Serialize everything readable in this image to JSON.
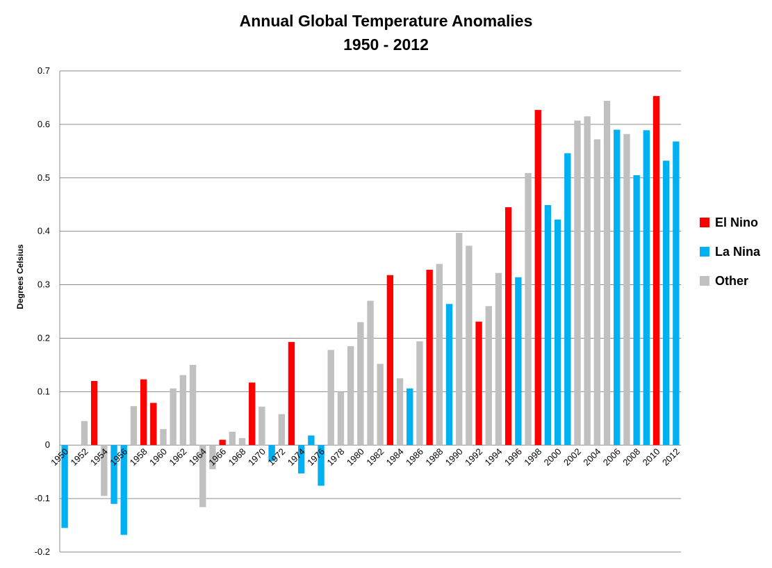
{
  "chart_data": {
    "type": "bar",
    "title_line1": "Annual Global Temperature Anomalies",
    "title_line2": "1950 - 2012",
    "xlabel": "",
    "ylabel": "Degrees Celsius",
    "ylim": [
      -0.2,
      0.7
    ],
    "yticks": [
      "-0.2",
      "-0.1",
      "0",
      "0.1",
      "0.2",
      "0.3",
      "0.4",
      "0.5",
      "0.6",
      "0.7"
    ],
    "grid": "horizontal",
    "legend_position": "right",
    "categories": [
      "1950",
      "1951",
      "1952",
      "1953",
      "1954",
      "1955",
      "1956",
      "1957",
      "1958",
      "1959",
      "1960",
      "1961",
      "1962",
      "1963",
      "1964",
      "1965",
      "1966",
      "1967",
      "1968",
      "1969",
      "1970",
      "1971",
      "1972",
      "1973",
      "1974",
      "1975",
      "1976",
      "1977",
      "1978",
      "1979",
      "1980",
      "1981",
      "1982",
      "1983",
      "1984",
      "1985",
      "1986",
      "1987",
      "1988",
      "1989",
      "1990",
      "1991",
      "1992",
      "1993",
      "1994",
      "1995",
      "1996",
      "1997",
      "1998",
      "1999",
      "2000",
      "2001",
      "2002",
      "2003",
      "2004",
      "2005",
      "2006",
      "2007",
      "2008",
      "2009",
      "2010",
      "2011",
      "2012"
    ],
    "xtick_labels": [
      "1950",
      "1952",
      "1954",
      "1956",
      "1958",
      "1960",
      "1962",
      "1964",
      "1966",
      "1968",
      "1970",
      "1972",
      "1974",
      "1976",
      "1978",
      "1980",
      "1982",
      "1984",
      "1986",
      "1988",
      "1990",
      "1992",
      "1994",
      "1996",
      "1998",
      "2000",
      "2002",
      "2004",
      "2006",
      "2008",
      "2010",
      "2012"
    ],
    "values": [
      -0.155,
      0.0,
      0.045,
      0.12,
      -0.095,
      -0.11,
      -0.168,
      0.073,
      0.123,
      0.079,
      0.03,
      0.106,
      0.131,
      0.15,
      -0.116,
      -0.045,
      0.01,
      0.025,
      0.013,
      0.117,
      0.072,
      -0.03,
      0.058,
      0.193,
      -0.053,
      0.018,
      -0.076,
      0.178,
      0.1,
      0.185,
      0.23,
      0.27,
      0.152,
      0.318,
      0.125,
      0.106,
      0.194,
      0.328,
      0.339,
      0.264,
      0.397,
      0.373,
      0.231,
      0.26,
      0.322,
      0.445,
      0.314,
      0.509,
      0.627,
      0.449,
      0.422,
      0.546,
      0.607,
      0.615,
      0.572,
      0.644,
      0.59,
      0.582,
      0.505,
      0.589,
      0.653,
      0.532,
      0.568
    ],
    "types": [
      "La Nina",
      "Other",
      "Other",
      "El Nino",
      "Other",
      "La Nina",
      "La Nina",
      "Other",
      "El Nino",
      "El Nino",
      "Other",
      "Other",
      "Other",
      "Other",
      "Other",
      "Other",
      "El Nino",
      "Other",
      "Other",
      "El Nino",
      "Other",
      "La Nina",
      "Other",
      "El Nino",
      "La Nina",
      "La Nina",
      "La Nina",
      "Other",
      "Other",
      "Other",
      "Other",
      "Other",
      "Other",
      "El Nino",
      "Other",
      "La Nina",
      "Other",
      "El Nino",
      "Other",
      "La Nina",
      "Other",
      "Other",
      "El Nino",
      "Other",
      "Other",
      "El Nino",
      "La Nina",
      "Other",
      "El Nino",
      "La Nina",
      "La Nina",
      "La Nina",
      "Other",
      "Other",
      "Other",
      "Other",
      "La Nina",
      "Other",
      "La Nina",
      "La Nina",
      "El Nino",
      "La Nina",
      "La Nina"
    ],
    "series": [
      {
        "name": "El Nino",
        "color": "#ff0000"
      },
      {
        "name": "La Nina",
        "color": "#00b0f0"
      },
      {
        "name": "Other",
        "color": "#c0c0c0"
      }
    ]
  }
}
